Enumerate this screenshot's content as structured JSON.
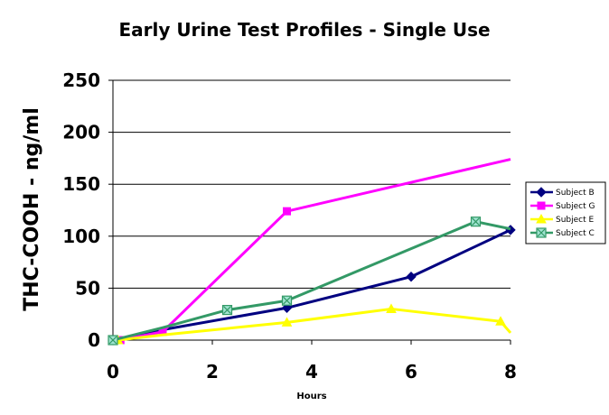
{
  "chart_data": {
    "type": "line",
    "title": "Early Urine Test Profiles - Single Use",
    "xlabel": "Hours",
    "ylabel": "THC-COOH - ng/ml",
    "xlim": [
      0,
      8
    ],
    "ylim": [
      0,
      250
    ],
    "xticks": [
      0,
      2,
      4,
      6,
      8
    ],
    "yticks": [
      0,
      50,
      100,
      150,
      200,
      250
    ],
    "grid": "horizontal",
    "legend_position": "right",
    "series": [
      {
        "name": "Subject B",
        "color": "#000080",
        "marker": "diamond",
        "points": [
          [
            0,
            0
          ],
          [
            1,
            10
          ],
          [
            3.5,
            31
          ],
          [
            6,
            61
          ],
          [
            8,
            106
          ]
        ],
        "marked": [
          0,
          2,
          3,
          4
        ]
      },
      {
        "name": "Subject G",
        "color": "#ff00ff",
        "marker": "square",
        "points": [
          [
            0.15,
            0
          ],
          [
            1,
            8
          ],
          [
            3.5,
            124
          ],
          [
            8,
            174
          ]
        ],
        "marked": [
          0,
          1,
          2
        ]
      },
      {
        "name": "Subject E",
        "color": "#ffff00",
        "marker": "triangle",
        "points": [
          [
            0.1,
            0
          ],
          [
            1,
            5
          ],
          [
            3.5,
            17
          ],
          [
            5.6,
            30
          ],
          [
            7.8,
            18
          ],
          [
            8,
            7
          ]
        ],
        "marked": [
          0,
          2,
          3,
          4
        ]
      },
      {
        "name": "Subject C",
        "color": "#339966",
        "marker": "x-square",
        "points": [
          [
            0,
            0
          ],
          [
            1,
            12
          ],
          [
            2.3,
            29
          ],
          [
            3.5,
            38
          ],
          [
            7.3,
            114
          ],
          [
            8,
            107
          ]
        ],
        "marked": [
          0,
          2,
          3,
          4
        ]
      }
    ]
  }
}
